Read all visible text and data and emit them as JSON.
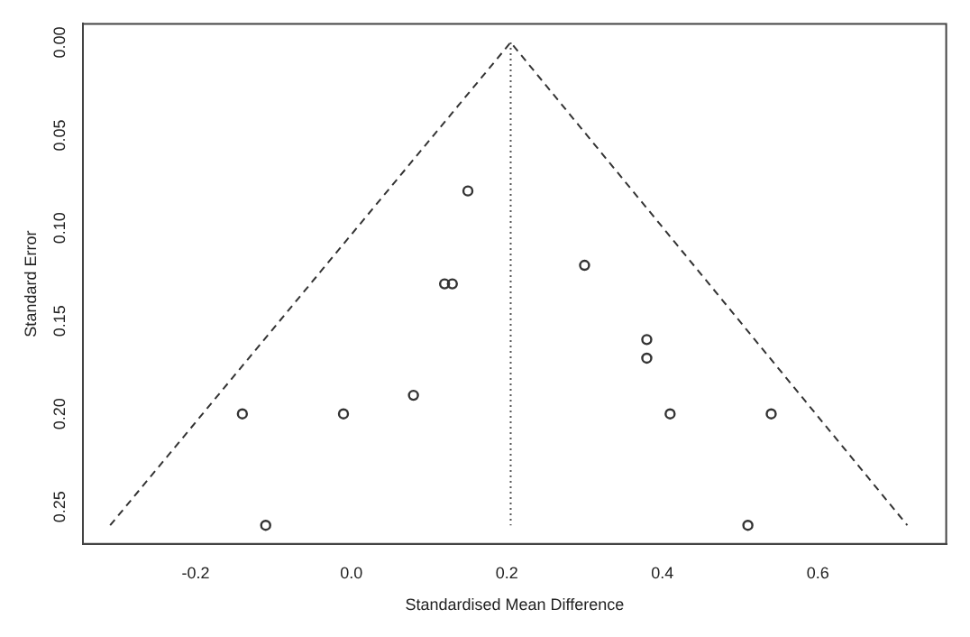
{
  "chart_data": {
    "type": "scatter",
    "xlabel": "Standardised Mean Difference",
    "ylabel": "Standard Error",
    "xlim": [
      -0.345,
      0.765
    ],
    "ylim": [
      0.27,
      -0.01
    ],
    "xticks": [
      -0.2,
      {
        "value": 0,
        "label": "0.0"
      },
      0.2,
      0.4,
      0.6
    ],
    "yticks": [
      {
        "value": 0,
        "label": "0.00"
      },
      {
        "value": 0.05,
        "label": "0.05"
      },
      {
        "value": 0.1,
        "label": "0.10"
      },
      {
        "value": 0.15,
        "label": "0.15"
      },
      {
        "value": 0.2,
        "label": "0.20"
      },
      {
        "value": 0.25,
        "label": "0.25"
      }
    ],
    "grid": false,
    "legend": false,
    "series": [
      {
        "marker": "circle",
        "color": "#333333",
        "x": [
          -0.14,
          -0.11,
          -0.01,
          0.08,
          0.12,
          0.13,
          0.15,
          0.3,
          0.38,
          0.38,
          0.41,
          0.54,
          0.51
        ],
        "values": [
          0.2,
          0.26,
          0.2,
          0.19,
          0.13,
          0.13,
          0.08,
          0.12,
          0.16,
          0.17,
          0.2,
          0.2,
          0.26
        ]
      },
      {
        "type": "line",
        "marker": "none",
        "line_style": "dashed",
        "color": "#333333",
        "x": [
          -0.31,
          0.205,
          0.715
        ],
        "values": [
          0.26,
          0,
          0.26
        ]
      }
    ],
    "ref_lines": [
      {
        "axis": "x",
        "value": 0.205,
        "label": null,
        "color": "#555555",
        "line_style": "dotted"
      }
    ]
  }
}
